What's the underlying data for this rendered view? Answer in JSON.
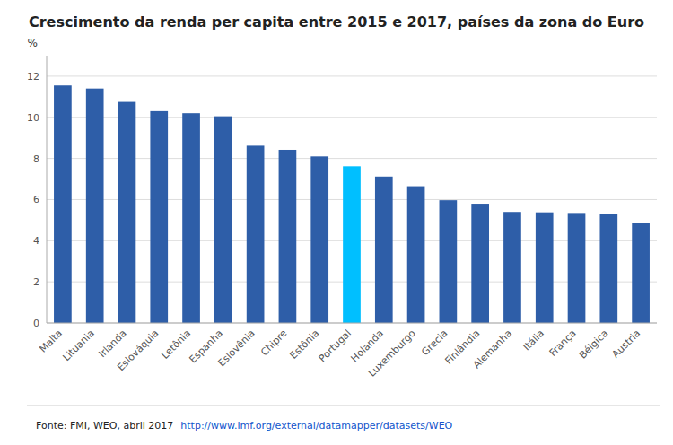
{
  "chart_data": {
    "type": "bar",
    "title": "Crescimento da renda per capita entre 2015 e 2017, países da zona do Euro",
    "ylabel": "%",
    "categories": [
      "Malta",
      "Lituania",
      "Irlanda",
      "Eslováquia",
      "Letônia",
      "Espanha",
      "Eslovênia",
      "Chipre",
      "Estônia",
      "Portugal",
      "Holanda",
      "Luxemburgo",
      "Grecia",
      "Finlândia",
      "Alemanha",
      "Itália",
      "França",
      "Bélgica",
      "Austria"
    ],
    "values": [
      11.55,
      11.4,
      10.75,
      10.3,
      10.2,
      10.05,
      8.62,
      8.42,
      8.1,
      7.62,
      7.12,
      6.65,
      5.97,
      5.8,
      5.4,
      5.38,
      5.35,
      5.3,
      4.88
    ],
    "colors": [
      "#2E5EA8",
      "#2E5EA8",
      "#2E5EA8",
      "#2E5EA8",
      "#2E5EA8",
      "#2E5EA8",
      "#2E5EA8",
      "#2E5EA8",
      "#2E5EA8",
      "#00BFFF",
      "#2E5EA8",
      "#2E5EA8",
      "#2E5EA8",
      "#2E5EA8",
      "#2E5EA8",
      "#2E5EA8",
      "#2E5EA8",
      "#2E5EA8",
      "#2E5EA8"
    ],
    "ylim": [
      0,
      13
    ],
    "yticks": [
      0,
      2,
      4,
      6,
      8,
      10,
      12
    ],
    "grid": true,
    "annotations": [
      "Fonte: FMI, WEO, abril 2017",
      "http://www.imf.org/external/datamapper/datasets/WEO"
    ]
  }
}
